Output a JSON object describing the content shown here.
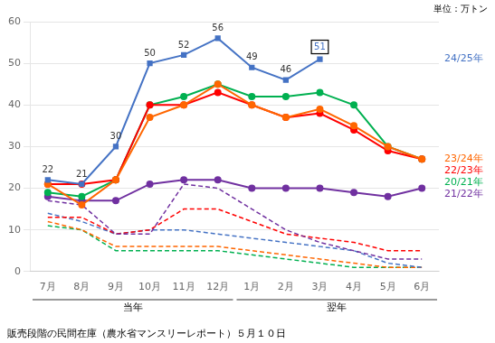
{
  "chart_data": {
    "type": "line",
    "categories": [
      "7月",
      "8月",
      "9月",
      "10月",
      "11月",
      "12月",
      "1月",
      "2月",
      "3月",
      "4月",
      "5月",
      "6月"
    ],
    "x_group_labels": [
      "当年",
      "翌年"
    ],
    "unit_label": "単位：万トン",
    "caption": "販売段階の民間在庫（農水省マンスリーレポート）５月１０日",
    "series": [
      {
        "color": "#7030A0",
        "values": [
          17,
          16,
          9,
          9,
          21,
          20,
          15,
          10,
          7,
          5,
          3,
          3
        ],
        "line_style": "dashed",
        "marker": "none"
      },
      {
        "color": "#FF0000",
        "values": [
          13,
          13,
          9,
          10,
          15,
          15,
          12,
          9,
          8,
          7,
          5,
          5
        ],
        "line_style": "dashed",
        "marker": "none"
      },
      {
        "color": "#4472C4",
        "values": [
          14,
          12,
          9,
          10,
          10,
          9,
          8,
          7,
          6,
          5,
          2,
          1
        ],
        "line_style": "dashed",
        "marker": "none"
      },
      {
        "color": "#FF6600",
        "values": [
          12,
          10,
          6,
          6,
          6,
          6,
          5,
          4,
          3,
          2,
          1,
          1
        ],
        "line_style": "dashed",
        "marker": "none"
      },
      {
        "color": "#00B050",
        "values": [
          11,
          10,
          5,
          5,
          5,
          5,
          4,
          3,
          2,
          1,
          1,
          1
        ],
        "line_style": "dashed",
        "marker": "none"
      },
      {
        "name": "24/25年",
        "color": "#4472C4",
        "values": [
          22,
          21,
          30,
          50,
          52,
          56,
          49,
          46,
          51,
          null,
          null,
          null
        ],
        "line_style": "solid",
        "marker": "square",
        "data_labels": true
      },
      {
        "name": "23/24年",
        "color": "#FF6600",
        "values": [
          21,
          16,
          22,
          37,
          40,
          45,
          40,
          37,
          39,
          35,
          30,
          27
        ],
        "line_style": "solid",
        "marker": "circle"
      },
      {
        "name": "22/23年",
        "color": "#FF0000",
        "values": [
          21,
          21,
          22,
          40,
          40,
          43,
          40,
          37,
          38,
          34,
          29,
          27
        ],
        "line_style": "solid",
        "marker": "circle"
      },
      {
        "name": "20/21年",
        "color": "#00B050",
        "values": [
          19,
          18,
          22,
          40,
          42,
          45,
          42,
          42,
          43,
          40,
          30,
          27
        ],
        "line_style": "solid",
        "marker": "circle"
      },
      {
        "name": "21/22年",
        "color": "#7030A0",
        "values": [
          18,
          17,
          17,
          21,
          22,
          22,
          20,
          20,
          20,
          19,
          18,
          20
        ],
        "line_style": "solid",
        "marker": "circle"
      }
    ],
    "ylim": [
      0,
      60
    ],
    "yticks": [
      0,
      10,
      20,
      30,
      40,
      50,
      60
    ],
    "grid": "y"
  }
}
